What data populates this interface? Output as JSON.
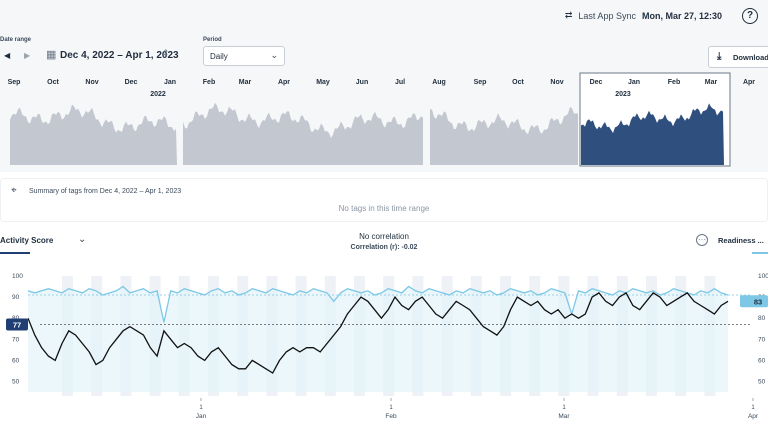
{
  "header": {
    "sync_label": "Last App Sync",
    "sync_datetime": "Mon, Mar 27, 12:30",
    "help_icon": "?"
  },
  "controls": {
    "date_range_label": "Date range",
    "date_range_value": "Dec 4, 2022 – Apr 1, 2023",
    "period_label": "Period",
    "period_value": "Daily",
    "download_label": "Download Da"
  },
  "timeline": {
    "months": [
      "Sep",
      "Oct",
      "Nov",
      "Dec",
      "Jan",
      "Feb",
      "Mar",
      "Apr",
      "May",
      "Jun",
      "Jul",
      "Aug",
      "Sep",
      "Oct",
      "Nov",
      "Dec",
      "Jan",
      "Feb",
      "Mar",
      "Apr"
    ],
    "years": [
      "2022",
      "2023"
    ]
  },
  "tags": {
    "summary": "Summary of tags from Dec 4, 2022 – Apr 1, 2023",
    "empty": "No tags in this time range"
  },
  "metrics": {
    "left_name": "Activity Score",
    "correlation_title": "No correlation",
    "correlation_value": "Correlation (r): -0.02",
    "right_name": "Readiness ..."
  },
  "colors": {
    "activity": "#111111",
    "readiness": "#7cc8e6",
    "selected_area": "#2f4f7f",
    "history_area": "#c3c7cf"
  },
  "chart_data": {
    "type": "line",
    "x_tick_labels": [
      {
        "day": "1",
        "month": "Jan"
      },
      {
        "day": "1",
        "month": "Feb"
      },
      {
        "day": "1",
        "month": "Mar"
      },
      {
        "day": "1",
        "month": "Apr"
      }
    ],
    "left_axis": {
      "ylim": [
        45,
        100
      ],
      "ticks": [
        100,
        90,
        80,
        70,
        60,
        50
      ]
    },
    "right_axis": {
      "ylim": [
        45,
        100
      ],
      "ticks": [
        100,
        90,
        80,
        70,
        60,
        50
      ]
    },
    "left_marker": "77",
    "right_marker": "83",
    "series": [
      {
        "name": "Activity Score",
        "values": [
          80,
          72,
          66,
          62,
          60,
          68,
          74,
          72,
          68,
          64,
          58,
          60,
          66,
          70,
          74,
          76,
          74,
          72,
          66,
          62,
          74,
          70,
          66,
          68,
          66,
          62,
          60,
          64,
          66,
          62,
          58,
          56,
          56,
          60,
          58,
          56,
          54,
          60,
          64,
          66,
          64,
          66,
          66,
          64,
          68,
          72,
          76,
          82,
          86,
          90,
          88,
          84,
          80,
          84,
          90,
          86,
          84,
          88,
          90,
          86,
          82,
          80,
          84,
          88,
          86,
          84,
          80,
          76,
          74,
          72,
          76,
          84,
          90,
          88,
          86,
          88,
          84,
          82,
          84,
          80,
          82,
          80,
          82,
          90,
          92,
          88,
          86,
          90,
          92,
          86,
          84,
          88,
          92,
          90,
          86,
          88,
          90,
          92,
          88,
          86,
          84,
          82,
          86,
          88
        ]
      },
      {
        "name": "Readiness",
        "values": [
          93,
          92,
          93,
          94,
          93,
          92,
          94,
          93,
          92,
          94,
          93,
          91,
          92,
          93,
          95,
          92,
          93,
          94,
          92,
          93,
          78,
          93,
          92,
          94,
          93,
          92,
          91,
          93,
          94,
          92,
          93,
          91,
          92,
          94,
          93,
          92,
          94,
          93,
          92,
          91,
          93,
          92,
          94,
          93,
          92,
          88,
          92,
          94,
          93,
          92,
          93,
          91,
          92,
          94,
          93,
          92,
          95,
          93,
          92,
          94,
          93,
          92,
          91,
          93,
          92,
          94,
          93,
          92,
          93,
          91,
          92,
          94,
          93,
          92,
          93,
          91,
          92,
          94,
          93,
          92,
          82,
          93,
          92,
          94,
          93,
          92,
          91,
          93,
          92,
          94,
          93,
          92,
          93,
          91,
          92,
          94,
          93,
          92,
          91,
          93,
          92,
          94,
          92,
          91
        ]
      }
    ]
  }
}
